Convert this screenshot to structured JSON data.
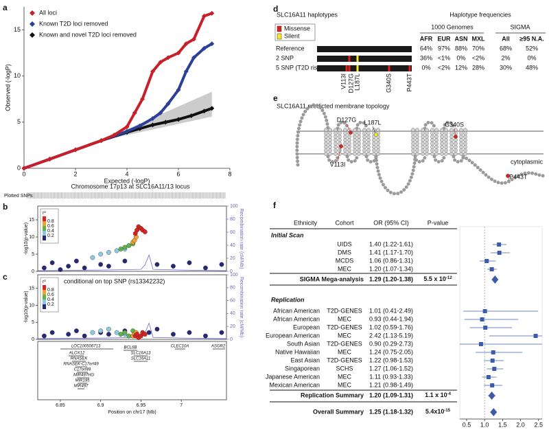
{
  "panel_labels": [
    "a",
    "b",
    "c",
    "d",
    "e",
    "f"
  ],
  "chart_data": [
    {
      "type": "scatter",
      "legend": "upper-left",
      "xlabel": "Expected (-logP)",
      "ylabel": "Observed (-logP)",
      "xlim": [
        0,
        8
      ],
      "ylim": [
        0,
        17.5
      ],
      "xticks": [
        0,
        2,
        4,
        6,
        8
      ],
      "yticks": [
        0,
        5,
        10,
        15
      ],
      "series": [
        {
          "name": "All loci",
          "color": "#c8202a",
          "x": [
            0,
            1,
            2,
            3,
            3.5,
            4,
            4.3,
            4.6,
            5,
            5.3,
            5.6,
            6,
            6.3,
            6.6,
            7,
            7.3
          ],
          "values": [
            0,
            1,
            2,
            3,
            3.6,
            4.5,
            6,
            7.5,
            10.5,
            11.5,
            12,
            12.5,
            13.5,
            14,
            16.5,
            16.8
          ]
        },
        {
          "name": "Known T2D loci removed",
          "color": "#2b3f96",
          "x": [
            0,
            1,
            2,
            3,
            4,
            4.5,
            5,
            5.3,
            5.6,
            6,
            6.3,
            6.6,
            7,
            7.3
          ],
          "values": [
            0,
            1,
            2,
            3,
            4,
            4.6,
            5.4,
            6,
            7,
            8.5,
            10.5,
            12,
            13,
            13.5
          ]
        },
        {
          "name": "Known and novel T2D loci removed",
          "color": "#111111",
          "x": [
            0,
            1,
            2,
            3,
            4,
            4.5,
            5,
            5.5,
            6,
            6.5,
            7,
            7.3
          ],
          "values": [
            0,
            1,
            2,
            3,
            3.9,
            4.3,
            4.7,
            5,
            5.3,
            5.7,
            6.2,
            6.5
          ]
        }
      ]
    },
    {
      "type": "locus",
      "title": "Chromosome 17p13 at SLC16A11/13 locus",
      "rug_label": "Plotted SNPs",
      "ylabel": "-log10(p-value)",
      "y2label": "Recombination rate (cM/Mb)",
      "xlim": [
        6.822,
        7.056
      ],
      "ylim": [
        0,
        19
      ],
      "yticks": [
        0,
        5,
        10,
        15
      ],
      "y2lim": [
        0,
        100
      ],
      "y2ticks": [
        0,
        20,
        40,
        60,
        80,
        100
      ],
      "legend_title": "r²",
      "legend_ticks": [
        0.8,
        0.6,
        0.4,
        0.2
      ],
      "series": [
        {
          "color": "#282878",
          "x": [
            6.83,
            6.84,
            6.85,
            6.86,
            6.87,
            6.88,
            6.9,
            6.91,
            6.93,
            6.97,
            6.99,
            7.01,
            7.03,
            7.05
          ],
          "values": [
            1,
            2.5,
            0.5,
            1.5,
            3,
            1,
            2,
            1.5,
            3,
            2,
            1.5,
            2.5,
            1,
            2
          ]
        },
        {
          "color": "#8ec9e3",
          "x": [
            6.89,
            6.9,
            6.91,
            6.92,
            6.93
          ],
          "values": [
            4,
            5,
            5.5,
            6,
            6.5
          ]
        },
        {
          "color": "#5db54a",
          "x": [
            6.925,
            6.93,
            6.935,
            6.94
          ],
          "values": [
            6.5,
            7,
            7.5,
            8
          ]
        },
        {
          "color": "#f4a22b",
          "x": [
            6.94,
            6.942,
            6.944
          ],
          "values": [
            8.5,
            9,
            10
          ]
        },
        {
          "color": "#d9231f",
          "x": [
            6.943,
            6.945,
            6.947,
            6.95,
            6.952,
            6.955
          ],
          "values": [
            11,
            12,
            13,
            12.5,
            12,
            11.5
          ]
        }
      ],
      "recombination": {
        "axis": "y2",
        "color": "#6a6ae0",
        "x": [
          6.822,
          6.9,
          6.95,
          6.955,
          6.96,
          6.965,
          7.0,
          7.056
        ],
        "values": [
          1,
          2,
          3,
          10,
          25,
          3,
          2,
          1
        ]
      }
    },
    {
      "type": "locus",
      "annotation": "conditional on top SNP (rs13342232)",
      "ylabel": "-log10(p-value)",
      "y2label": "Recombination rate (cM/Mb)",
      "xlabel": "Position on chr17 (Mb)",
      "xlim": [
        6.822,
        7.056
      ],
      "ylim": [
        0,
        19
      ],
      "yticks": [
        0,
        5,
        10,
        15
      ],
      "y2lim": [
        0,
        100
      ],
      "y2ticks": [
        0,
        20,
        40,
        60,
        80,
        100
      ],
      "xticks": [
        6.85,
        6.9,
        6.95,
        7
      ],
      "legend_title": "r²",
      "legend_ticks": [
        0.8,
        0.6,
        0.4,
        0.2
      ],
      "series": [
        {
          "color": "#282878",
          "x": [
            6.83,
            6.84,
            6.86,
            6.87,
            6.88,
            6.9,
            6.91,
            6.93,
            6.96,
            6.97,
            6.99,
            7.01,
            7.03,
            7.05
          ],
          "values": [
            1,
            2,
            1.5,
            2.5,
            1,
            2,
            1.5,
            2.5,
            2,
            3,
            1.5,
            2,
            1,
            2
          ]
        },
        {
          "color": "#8ec9e3",
          "x": [
            6.89,
            6.9,
            6.91,
            6.92,
            6.93
          ],
          "values": [
            2,
            2.5,
            3,
            2,
            1.5
          ]
        },
        {
          "color": "#5db54a",
          "x": [
            6.925,
            6.93,
            6.935,
            6.94
          ],
          "values": [
            1.5,
            2,
            1,
            2.5
          ]
        },
        {
          "color": "#f4a22b",
          "x": [
            6.94,
            6.942,
            6.944
          ],
          "values": [
            1,
            1.5,
            2
          ]
        },
        {
          "color": "#d9231f",
          "x": [
            6.943,
            6.945,
            6.947,
            6.95,
            6.952,
            6.955
          ],
          "values": [
            1,
            1.5,
            0.5,
            1,
            2,
            1.5
          ]
        }
      ],
      "recombination": {
        "axis": "y2",
        "color": "#6a6ae0",
        "x": [
          6.822,
          6.9,
          6.95,
          6.955,
          6.96,
          6.965,
          7.0,
          7.056
        ],
        "values": [
          1,
          2,
          3,
          10,
          25,
          3,
          2,
          1
        ]
      }
    },
    {
      "type": "forest",
      "header": [
        "Ethnicity",
        "Cohort",
        "OR (95% CI)",
        "P-value"
      ],
      "xlim": [
        0.31,
        2.6
      ],
      "xticks": [
        0.5,
        {
          "value": 1,
          "label": "1.0"
        },
        1.5,
        {
          "value": 2,
          "label": "2.0"
        },
        2.5
      ],
      "color": "#3c5ba8",
      "groups": [
        {
          "name": "Initial Scan",
          "rows": [
            {
              "cohort": "UIDS",
              "ci_label": "1.40 (1.22-1.61)",
              "or": 1.4,
              "ci": [
                1.22,
                1.61
              ]
            },
            {
              "cohort": "DMS",
              "ci_label": "1.41 (1.17-1.70)",
              "or": 1.41,
              "ci": [
                1.17,
                1.7
              ]
            },
            {
              "cohort": "MCDS",
              "ci_label": "1.06 (0.86-1.31)",
              "or": 1.06,
              "ci": [
                0.86,
                1.31
              ]
            },
            {
              "cohort": "MEC",
              "ci_label": "1.20 (1.07-1.34)",
              "or": 1.2,
              "ci": [
                1.07,
                1.34
              ]
            }
          ],
          "summary": {
            "name": "SIGMA Mega-analysis",
            "ci_label": "1.29 (1.20-1.38)",
            "or": 1.29,
            "ci": [
              1.2,
              1.38
            ],
            "p": {
              "base": "5.5 x 10",
              "exp": "-12"
            }
          }
        },
        {
          "name": "Replication",
          "rows": [
            {
              "ethnicity": "African American",
              "cohort": "T2D-GENES",
              "ci_label": "1.01 (0.41-2.49)",
              "or": 1.01,
              "ci": [
                0.41,
                2.49
              ]
            },
            {
              "ethnicity": "African American",
              "cohort": "MEC",
              "ci_label": "0.93 (0.44-1.94)",
              "or": 0.93,
              "ci": [
                0.44,
                1.94
              ]
            },
            {
              "ethnicity": "European",
              "cohort": "T2D-GENES",
              "ci_label": "1.02 (0.59-1.76)",
              "or": 1.02,
              "ci": [
                0.59,
                1.76
              ]
            },
            {
              "ethnicity": "European American",
              "cohort": "MEC",
              "ci_label": "2.42 (1.13-5.19)",
              "or": 2.42,
              "ci": [
                1.13,
                5.19
              ]
            },
            {
              "ethnicity": "South Asian",
              "cohort": "T2D-GENES",
              "ci_label": "0.90 (0.29-2.73)",
              "or": 0.9,
              "ci": [
                0.29,
                2.73
              ]
            },
            {
              "ethnicity": "Native Hawaiian",
              "cohort": "MEC",
              "ci_label": "1.24 (0.75-2.05)",
              "or": 1.24,
              "ci": [
                0.75,
                2.05
              ]
            },
            {
              "ethnicity": "East Asian",
              "cohort": "T2D-GENES",
              "ci_label": "1.22 (0.98-1.53)",
              "or": 1.22,
              "ci": [
                0.98,
                1.53
              ]
            },
            {
              "ethnicity": "Singaporean",
              "cohort": "SCHS",
              "ci_label": "1.27 (1.06-1.52)",
              "or": 1.27,
              "ci": [
                1.06,
                1.52
              ]
            },
            {
              "ethnicity": "Japanese American",
              "cohort": "MEC",
              "ci_label": "1.11 (0.93-1.33)",
              "or": 1.11,
              "ci": [
                0.93,
                1.33
              ]
            },
            {
              "ethnicity": "Mexican American",
              "cohort": "MEC",
              "ci_label": "1.21 (0.98-1.49)",
              "or": 1.21,
              "ci": [
                0.98,
                1.49
              ]
            }
          ],
          "summary": {
            "name": "Replication Summary",
            "ci_label": "1.20 (1.09-1.31)",
            "or": 1.2,
            "ci": [
              1.09,
              1.31
            ],
            "p": {
              "base": "1.1 x 10",
              "exp": "-4"
            }
          }
        }
      ],
      "overall": {
        "name": "Overall Summary",
        "ci_label": "1.25 (1.18-1.32)",
        "or": 1.25,
        "ci": [
          1.18,
          1.32
        ],
        "p": {
          "base": "5.4x10",
          "exp": "-15"
        }
      }
    }
  ],
  "genes": [
    "LOC100506713",
    "BCL6B",
    "ALOX12",
    "SLC16A13",
    "RNASEK",
    "SLC16A11",
    "RNASEK-C17orf49",
    "C17orf49",
    "MIR497HG",
    "MIR195",
    "MIR497",
    "CLEC10A",
    "ASGR2"
  ],
  "haplotypes": {
    "title": "SLC16A11 haplotypes",
    "legend": [
      "Missense",
      "Silent"
    ],
    "freq_title": "Haplotype frequencies",
    "groups": [
      "1000 Genomes",
      "SIGMA"
    ],
    "columns": [
      "AFR",
      "EUR",
      "ASN",
      "MXL",
      "All",
      "≥95 N.A."
    ],
    "rows": [
      {
        "name": "Reference",
        "freqs": [
          "64%",
          "97%",
          "88%",
          "70%",
          "68%",
          "52%"
        ]
      },
      {
        "name": "2 SNP",
        "freqs": [
          "36%",
          "<1%",
          "0%",
          "<2%",
          "2%",
          "0%"
        ]
      },
      {
        "name": "5 SNP (T2D risk)",
        "freqs": [
          "0%",
          "<2%",
          "12%",
          "28%",
          "30%",
          "48%"
        ]
      }
    ],
    "variants": [
      "V113I",
      "D127G",
      "L187L",
      "G340S",
      "P443T"
    ]
  },
  "topology": {
    "title": "SLC16A11 predicted membrane topology",
    "variants": [
      "D127G",
      "L187L",
      "G340S",
      "V113I",
      "P443T"
    ],
    "compartment": "cytoplasmic"
  }
}
